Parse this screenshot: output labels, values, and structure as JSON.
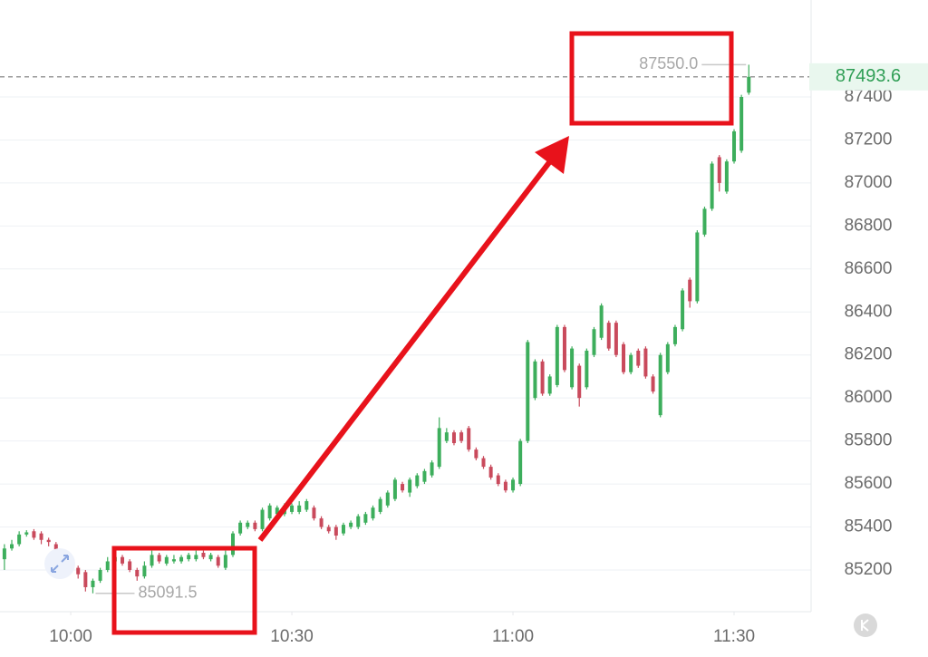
{
  "chart_data": {
    "type": "candlestick",
    "x": [
      591,
      592,
      593,
      594,
      595,
      596,
      597,
      598,
      599,
      600,
      601,
      602,
      603,
      604,
      605,
      606,
      607,
      608,
      609,
      610,
      611,
      612,
      613,
      614,
      615,
      616,
      617,
      618,
      619,
      620,
      621,
      622,
      623,
      624,
      625,
      626,
      627,
      628,
      629,
      630,
      631,
      632,
      633,
      634,
      635,
      636,
      637,
      638,
      639,
      640,
      641,
      642,
      643,
      644,
      645,
      646,
      647,
      648,
      649,
      650,
      651,
      652,
      653,
      654,
      655,
      656,
      657,
      658,
      659,
      660,
      661,
      662,
      663,
      664,
      665,
      666,
      667,
      668,
      669,
      670,
      671,
      672,
      673,
      674,
      675,
      676,
      677,
      678,
      679,
      680,
      681,
      682,
      683,
      684,
      685,
      686,
      687,
      688,
      689,
      690,
      691,
      692
    ],
    "open": [
      85250,
      85300,
      85320,
      85365,
      85380,
      85370,
      85340,
      85320,
      85260,
      85220,
      85210,
      85190,
      85120,
      85150,
      85200,
      85240,
      85260,
      85240,
      85200,
      85170,
      85220,
      85270,
      85230,
      85240,
      85240,
      85250,
      85250,
      85280,
      85250,
      85260,
      85210,
      85270,
      85370,
      85400,
      85420,
      85390,
      85440,
      85460,
      85460,
      85470,
      85470,
      85480,
      85490,
      85440,
      85400,
      85400,
      85370,
      85400,
      85400,
      85420,
      85440,
      85470,
      85500,
      85530,
      85600,
      85560,
      85590,
      85610,
      85640,
      85680,
      85800,
      85840,
      85840,
      85860,
      85760,
      85720,
      85680,
      85640,
      85610,
      85570,
      85600,
      85800,
      86000,
      86170,
      86020,
      86060,
      86330,
      86050,
      86150,
      86050,
      86200,
      86280,
      86350,
      86350,
      86250,
      86120,
      86220,
      86230,
      86100,
      85920,
      86120,
      86250,
      86320,
      86550,
      86450,
      86760,
      86880,
      87120,
      86960,
      87100,
      87150,
      87420
    ],
    "high": [
      85320,
      85340,
      85380,
      85385,
      85390,
      85380,
      85350,
      85330,
      85270,
      85240,
      85220,
      85200,
      85160,
      85210,
      85260,
      85280,
      85270,
      85250,
      85210,
      85240,
      85290,
      85280,
      85270,
      85270,
      85270,
      85280,
      85290,
      85290,
      85280,
      85270,
      85290,
      85380,
      85430,
      85430,
      85430,
      85490,
      85510,
      85500,
      85510,
      85510,
      85520,
      85530,
      85500,
      85450,
      85410,
      85410,
      85420,
      85430,
      85460,
      85470,
      85500,
      85540,
      85570,
      85630,
      85610,
      85630,
      85650,
      85670,
      85710,
      85910,
      85860,
      85850,
      85850,
      85870,
      85770,
      85730,
      85690,
      85650,
      85620,
      85630,
      85810,
      86270,
      86180,
      86180,
      86110,
      86340,
      86340,
      86240,
      86160,
      86230,
      86330,
      86440,
      86360,
      86360,
      86260,
      86210,
      86230,
      86240,
      86110,
      86210,
      86260,
      86340,
      86510,
      86560,
      86780,
      86890,
      87100,
      87130,
      87110,
      87250,
      87410,
      87550
    ],
    "low": [
      85200,
      85290,
      85310,
      85355,
      85340,
      85320,
      85310,
      85250,
      85200,
      85190,
      85160,
      85100,
      85091.5,
      85140,
      85190,
      85230,
      85220,
      85190,
      85150,
      85160,
      85210,
      85230,
      85220,
      85230,
      85230,
      85240,
      85240,
      85250,
      85240,
      85210,
      85200,
      85260,
      85360,
      85390,
      85380,
      85380,
      85430,
      85450,
      85450,
      85460,
      85460,
      85470,
      85430,
      85390,
      85370,
      85340,
      85360,
      85390,
      85390,
      85410,
      85430,
      85460,
      85490,
      85520,
      85560,
      85540,
      85580,
      85600,
      85630,
      85670,
      85790,
      85780,
      85790,
      85750,
      85710,
      85670,
      85620,
      85590,
      85560,
      85560,
      85590,
      85790,
      85990,
      86010,
      86010,
      86050,
      86120,
      86040,
      85960,
      86040,
      86190,
      86270,
      86220,
      86190,
      86110,
      86110,
      86140,
      86090,
      86020,
      85910,
      86110,
      86240,
      86310,
      86420,
      86440,
      86750,
      86870,
      86960,
      86950,
      87090,
      87140,
      87410
    ],
    "close": [
      85300,
      85320,
      85365,
      85375,
      85350,
      85340,
      85330,
      85260,
      85220,
      85200,
      85180,
      85120,
      85150,
      85200,
      85240,
      85260,
      85230,
      85200,
      85170,
      85220,
      85270,
      85240,
      85260,
      85250,
      85260,
      85270,
      85270,
      85260,
      85270,
      85220,
      85270,
      85370,
      85420,
      85420,
      85390,
      85480,
      85500,
      85490,
      85500,
      85500,
      85500,
      85520,
      85440,
      85400,
      85380,
      85360,
      85410,
      85420,
      85450,
      85460,
      85490,
      85530,
      85560,
      85620,
      85570,
      85620,
      85640,
      85660,
      85700,
      85860,
      85840,
      85790,
      85800,
      85760,
      85720,
      85680,
      85630,
      85600,
      85570,
      85620,
      85800,
      86260,
      86170,
      86020,
      86100,
      86330,
      86130,
      86230,
      86000,
      86220,
      86320,
      86430,
      86230,
      86200,
      86120,
      86200,
      86150,
      86100,
      86030,
      86200,
      86250,
      86330,
      86500,
      86450,
      86770,
      86880,
      87090,
      87000,
      87100,
      87240,
      87400,
      87493.6
    ],
    "up_color": "#3dae5c",
    "down_color": "#c94a5c",
    "xlim": [
      590.4,
      700.45
    ],
    "xticks": [
      {
        "value": 600,
        "label": "10:00"
      },
      {
        "value": 630,
        "label": "10:30"
      },
      {
        "value": 660,
        "label": "11:00"
      },
      {
        "value": 690,
        "label": "11:30"
      }
    ],
    "ylim": [
      85006,
      87851
    ],
    "yticks": [
      85200,
      85400,
      85600,
      85800,
      86000,
      86200,
      86400,
      86600,
      86800,
      87000,
      87200,
      87400
    ],
    "grid": true,
    "last_price": 87493.6,
    "high_marker": {
      "value": 87550,
      "label": "87550.0"
    },
    "low_marker": 85091.5
  }
}
